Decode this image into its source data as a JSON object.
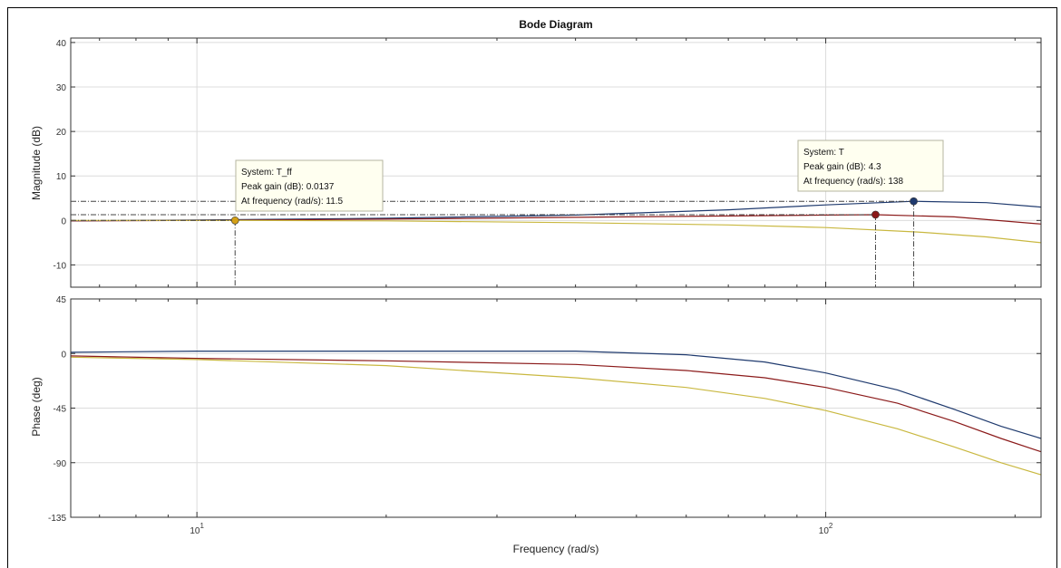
{
  "chart_data": {
    "type": "line",
    "title": "Bode Diagram",
    "xlabel": "Frequency  (rad/s)",
    "x_scale": "log",
    "xlim": [
      6.3,
      220
    ],
    "x_tick_labels": [
      {
        "value": 10,
        "base": "10",
        "exp": "1"
      },
      {
        "value": 100,
        "base": "10",
        "exp": "2"
      }
    ],
    "grid": true,
    "colors": {
      "T": "#1f3a6e",
      "T_mid": "#8b1a1a",
      "T_ff": "#c9b840",
      "marker_T_ff": "#d4a017",
      "datatip_bg": "#fffff0",
      "datatip_border": "#b5b5a0"
    },
    "magnitude": {
      "ylabel": "Magnitude (dB)",
      "ylim": [
        -15,
        41
      ],
      "yticks": [
        -10,
        0,
        10,
        20,
        30,
        40
      ],
      "ytick_labels": [
        "-10",
        "0",
        "10",
        "20",
        "30",
        "40"
      ],
      "series": [
        {
          "key": "T",
          "x": [
            6.3,
            10,
            20,
            40,
            70,
            100,
            138,
            180,
            220
          ],
          "y": [
            -0.1,
            0.1,
            0.5,
            1.2,
            2.4,
            3.5,
            4.3,
            4.0,
            3.0
          ]
        },
        {
          "key": "T_mid",
          "x": [
            6.3,
            10,
            20,
            40,
            70,
            100,
            120,
            160,
            220
          ],
          "y": [
            -0.1,
            0.0,
            0.3,
            0.7,
            1.0,
            1.2,
            1.3,
            0.8,
            -0.8
          ]
        },
        {
          "key": "T_ff",
          "x": [
            6.3,
            10,
            11.5,
            20,
            40,
            70,
            100,
            140,
            180,
            220
          ],
          "y": [
            0.0,
            0.0,
            0.0137,
            -0.1,
            -0.5,
            -1.0,
            -1.6,
            -2.6,
            -3.7,
            -5.0
          ]
        }
      ],
      "peaks": [
        {
          "key": "T_ff",
          "x": 11.5,
          "y": 0.0137
        },
        {
          "key": "T_mid",
          "x": 120,
          "y": 1.3
        },
        {
          "key": "T",
          "x": 138,
          "y": 4.3
        }
      ],
      "datatips": [
        {
          "name": "System: T_ff",
          "gain": "Peak gain (dB): 0.0137",
          "freq": "At frequency (rad/s): 11.5"
        },
        {
          "name": "System: T",
          "gain": "Peak gain (dB): 4.3",
          "freq": "At frequency (rad/s): 138"
        }
      ]
    },
    "phase": {
      "ylabel": "Phase (deg)",
      "ylim": [
        -135,
        45
      ],
      "yticks": [
        -135,
        -90,
        -45,
        0,
        45
      ],
      "ytick_labels": [
        "-135",
        "-90",
        "-45",
        "0",
        "45"
      ],
      "series": [
        {
          "key": "T",
          "x": [
            6.3,
            10,
            20,
            40,
            60,
            80,
            100,
            130,
            160,
            190,
            220
          ],
          "y": [
            1,
            2,
            2,
            2,
            -1,
            -7,
            -16,
            -30,
            -46,
            -60,
            -70
          ]
        },
        {
          "key": "T_mid",
          "x": [
            6.3,
            10,
            20,
            40,
            60,
            80,
            100,
            130,
            160,
            190,
            220
          ],
          "y": [
            -2,
            -4,
            -6,
            -9,
            -14,
            -20,
            -28,
            -41,
            -56,
            -70,
            -81
          ]
        },
        {
          "key": "T_ff",
          "x": [
            6.3,
            10,
            20,
            40,
            60,
            80,
            100,
            130,
            160,
            190,
            220
          ],
          "y": [
            -3,
            -5,
            -10,
            -20,
            -28,
            -37,
            -47,
            -62,
            -77,
            -90,
            -100
          ]
        }
      ]
    }
  }
}
